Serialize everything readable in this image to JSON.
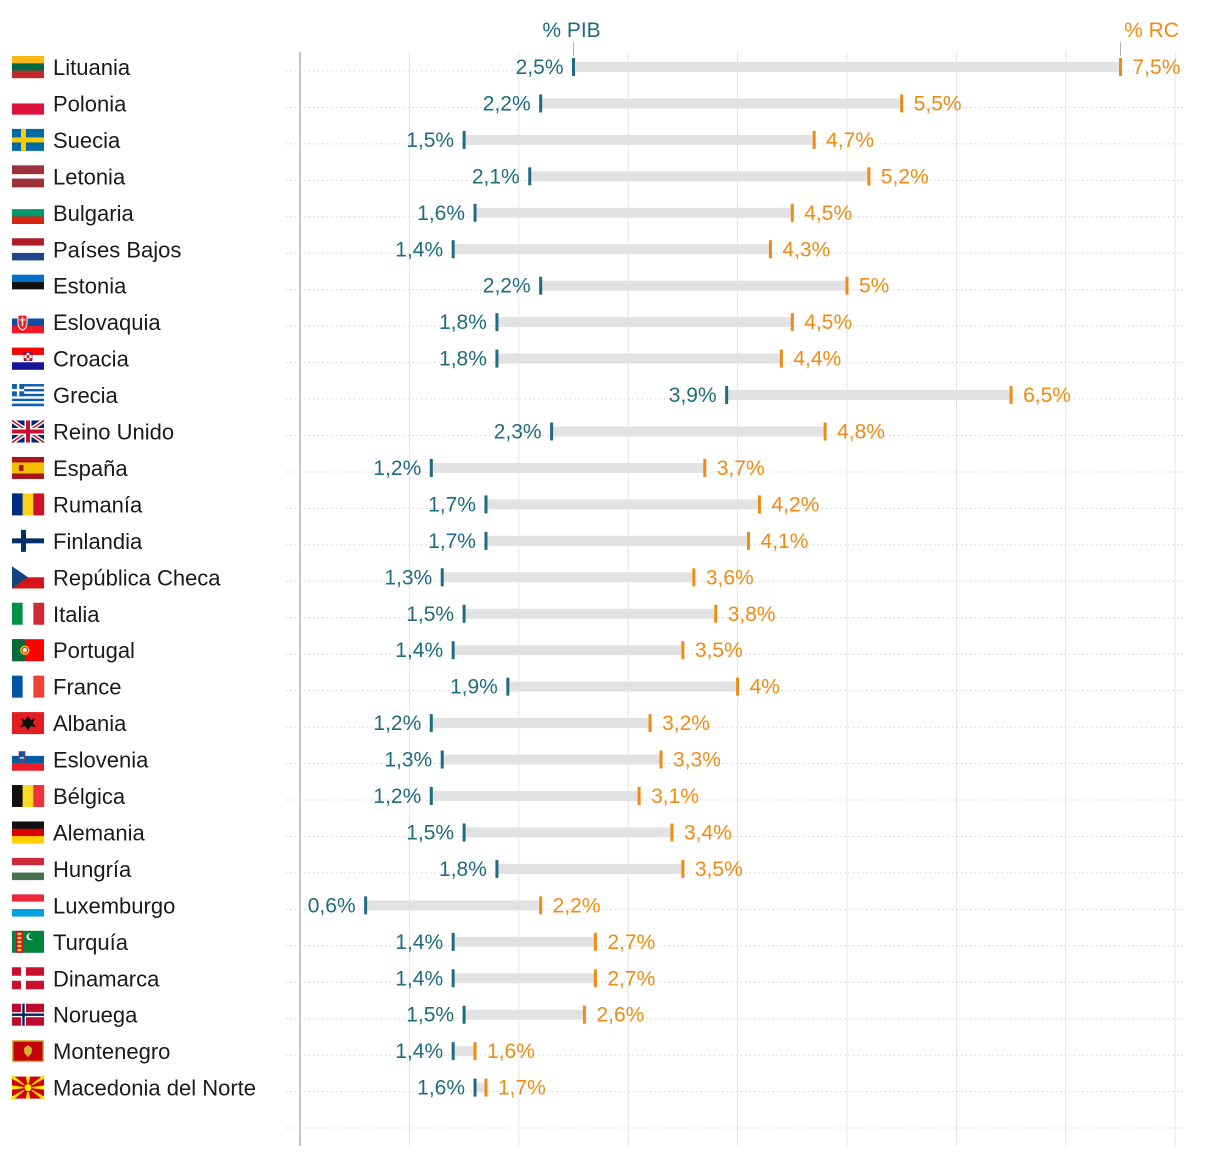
{
  "chart_data": {
    "type": "dumbbell",
    "series": [
      {
        "name": "% PIB",
        "color": "#1f6b80"
      },
      {
        "name": "% RC",
        "color": "#f28a12"
      }
    ],
    "axis_range": [
      0,
      8
    ],
    "grid": true,
    "rows": [
      {
        "country": "Lituania",
        "flag": "lithuania-flag",
        "gdp": 2.5,
        "gdp_label": "2,5%",
        "rc": 7.5,
        "rc_label": "7,5%"
      },
      {
        "country": "Polonia",
        "flag": "poland-flag",
        "gdp": 2.2,
        "gdp_label": "2,2%",
        "rc": 5.5,
        "rc_label": "5,5%"
      },
      {
        "country": "Suecia",
        "flag": "sweden-flag",
        "gdp": 1.5,
        "gdp_label": "1,5%",
        "rc": 4.7,
        "rc_label": "4,7%"
      },
      {
        "country": "Letonia",
        "flag": "latvia-flag",
        "gdp": 2.1,
        "gdp_label": "2,1%",
        "rc": 5.2,
        "rc_label": "5,2%"
      },
      {
        "country": "Bulgaria",
        "flag": "bulgaria-flag",
        "gdp": 1.6,
        "gdp_label": "1,6%",
        "rc": 4.5,
        "rc_label": "4,5%"
      },
      {
        "country": "Países Bajos",
        "flag": "netherlands-flag",
        "gdp": 1.4,
        "gdp_label": "1,4%",
        "rc": 4.3,
        "rc_label": "4,3%"
      },
      {
        "country": "Estonia",
        "flag": "estonia-flag",
        "gdp": 2.2,
        "gdp_label": "2,2%",
        "rc": 5.0,
        "rc_label": "5%"
      },
      {
        "country": "Eslovaquia",
        "flag": "slovakia-flag",
        "gdp": 1.8,
        "gdp_label": "1,8%",
        "rc": 4.5,
        "rc_label": "4,5%"
      },
      {
        "country": "Croacia",
        "flag": "croatia-flag",
        "gdp": 1.8,
        "gdp_label": "1,8%",
        "rc": 4.4,
        "rc_label": "4,4%"
      },
      {
        "country": "Grecia",
        "flag": "greece-flag",
        "gdp": 3.9,
        "gdp_label": "3,9%",
        "rc": 6.5,
        "rc_label": "6,5%"
      },
      {
        "country": "Reino Unido",
        "flag": "uk-flag",
        "gdp": 2.3,
        "gdp_label": "2,3%",
        "rc": 4.8,
        "rc_label": "4,8%"
      },
      {
        "country": "España",
        "flag": "spain-flag",
        "gdp": 1.2,
        "gdp_label": "1,2%",
        "rc": 3.7,
        "rc_label": "3,7%"
      },
      {
        "country": "Rumanía",
        "flag": "romania-flag",
        "gdp": 1.7,
        "gdp_label": "1,7%",
        "rc": 4.2,
        "rc_label": "4,2%"
      },
      {
        "country": "Finlandia",
        "flag": "finland-flag",
        "gdp": 1.7,
        "gdp_label": "1,7%",
        "rc": 4.1,
        "rc_label": "4,1%"
      },
      {
        "country": "República Checa",
        "flag": "czech-flag",
        "gdp": 1.3,
        "gdp_label": "1,3%",
        "rc": 3.6,
        "rc_label": "3,6%"
      },
      {
        "country": "Italia",
        "flag": "italy-flag",
        "gdp": 1.5,
        "gdp_label": "1,5%",
        "rc": 3.8,
        "rc_label": "3,8%"
      },
      {
        "country": "Portugal",
        "flag": "portugal-flag",
        "gdp": 1.4,
        "gdp_label": "1,4%",
        "rc": 3.5,
        "rc_label": "3,5%"
      },
      {
        "country": "France",
        "flag": "france-flag",
        "gdp": 1.9,
        "gdp_label": "1,9%",
        "rc": 4.0,
        "rc_label": "4%"
      },
      {
        "country": "Albania",
        "flag": "albania-flag",
        "gdp": 1.2,
        "gdp_label": "1,2%",
        "rc": 3.2,
        "rc_label": "3,2%"
      },
      {
        "country": "Eslovenia",
        "flag": "slovenia-flag",
        "gdp": 1.3,
        "gdp_label": "1,3%",
        "rc": 3.3,
        "rc_label": "3,3%"
      },
      {
        "country": "Bélgica",
        "flag": "belgium-flag",
        "gdp": 1.2,
        "gdp_label": "1,2%",
        "rc": 3.1,
        "rc_label": "3,1%"
      },
      {
        "country": "Alemania",
        "flag": "germany-flag",
        "gdp": 1.5,
        "gdp_label": "1,5%",
        "rc": 3.4,
        "rc_label": "3,4%"
      },
      {
        "country": "Hungría",
        "flag": "hungary-flag",
        "gdp": 1.8,
        "gdp_label": "1,8%",
        "rc": 3.5,
        "rc_label": "3,5%"
      },
      {
        "country": "Luxemburgo",
        "flag": "luxembourg-flag",
        "gdp": 0.6,
        "gdp_label": "0,6%",
        "rc": 2.2,
        "rc_label": "2,2%"
      },
      {
        "country": "Turquía",
        "flag": "turkmenistan-flag",
        "gdp": 1.4,
        "gdp_label": "1,4%",
        "rc": 2.7,
        "rc_label": "2,7%"
      },
      {
        "country": "Dinamarca",
        "flag": "denmark-flag",
        "gdp": 1.4,
        "gdp_label": "1,4%",
        "rc": 2.7,
        "rc_label": "2,7%"
      },
      {
        "country": "Noruega",
        "flag": "norway-flag",
        "gdp": 1.5,
        "gdp_label": "1,5%",
        "rc": 2.6,
        "rc_label": "2,6%"
      },
      {
        "country": "Montenegro",
        "flag": "montenegro-flag",
        "gdp": 1.4,
        "gdp_label": "1,4%",
        "rc": 1.6,
        "rc_label": "1,6%"
      },
      {
        "country": "Macedonia del Norte",
        "flag": "north-macedonia-flag",
        "gdp": 1.6,
        "gdp_label": "1,6%",
        "rc": 1.7,
        "rc_label": "1,7%"
      }
    ]
  }
}
